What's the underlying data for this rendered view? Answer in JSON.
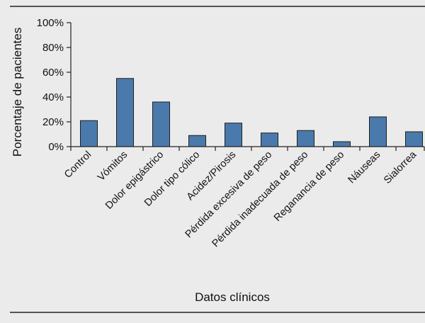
{
  "chart_data": {
    "type": "bar",
    "title": "",
    "xlabel": "Datos clínicos",
    "ylabel": "Porcentaje de pacientes",
    "ylim": [
      0,
      100
    ],
    "yticks": [
      "0%",
      "20%",
      "40%",
      "60%",
      "80%",
      "100%"
    ],
    "categories": [
      "Control",
      "Vómitos",
      "Dolor epigástrico",
      "Dolor tipo cólico",
      "Acidez/Pirosis",
      "Pérdida excesiva de peso",
      "Pérdida inadecuada de peso",
      "Reganancia de peso",
      "Náuseas",
      "Sialorrea"
    ],
    "values": [
      21,
      55,
      36,
      9,
      19,
      11,
      13,
      4,
      24,
      12
    ],
    "bar_color": "#4a7aab",
    "bar_edge_color": "#1e1e1e",
    "background_color": "#ebebeb",
    "grid": false,
    "legend": "none"
  }
}
